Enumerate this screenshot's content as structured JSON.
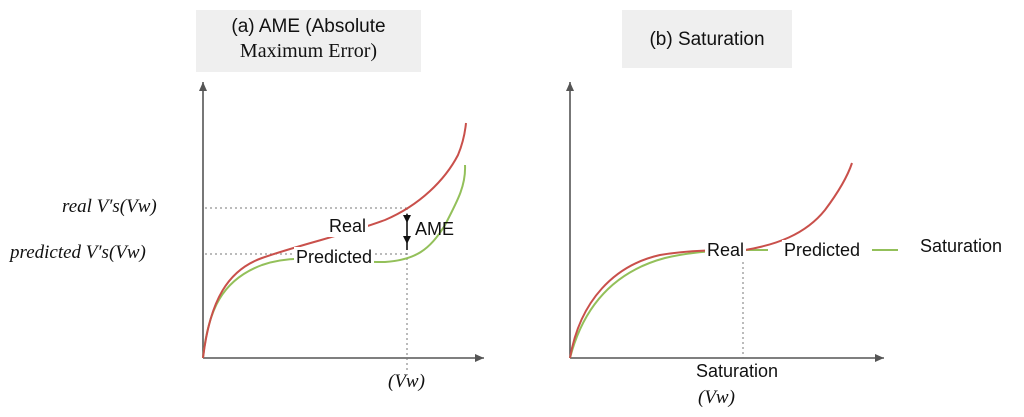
{
  "panel_a": {
    "title_line1": "(a) AME (Absolute",
    "title_line2": "Maximum Error)",
    "real_label": "Real",
    "predicted_label": "Predicted",
    "ame_label": "AME",
    "y_label_real": "real V′s(Vw)",
    "y_label_predicted": "predicted V′s(Vw)",
    "x_label": "(Vw)"
  },
  "panel_b": {
    "title": "(b) Saturation",
    "real_label": "Real",
    "predicted_label": "Predicted",
    "saturation_label": "Saturation",
    "x_label_line1": "Saturation",
    "x_label_line2": "(Vw)"
  },
  "colors": {
    "real": "#c9504b",
    "predicted": "#93c05a",
    "axis": "#555555"
  }
}
